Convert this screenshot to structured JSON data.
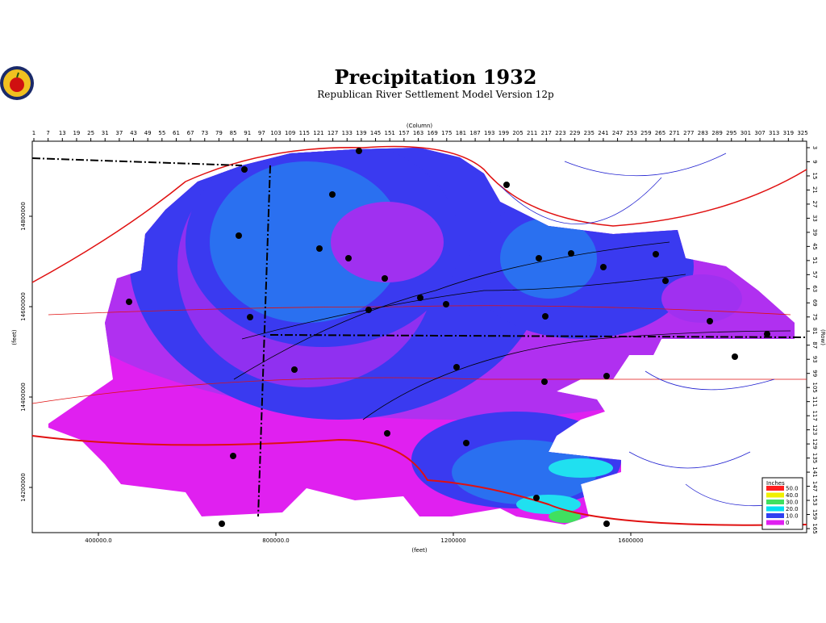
{
  "header": {
    "title": "Precipitation  1932",
    "subtitle": "Republican River Settlement Model Version 12p"
  },
  "top_axis": {
    "label": "(Column)",
    "ticks": [
      "1",
      "7",
      "13",
      "19",
      "25",
      "31",
      "37",
      "43",
      "49",
      "55",
      "61",
      "67",
      "73",
      "79",
      "85",
      "91",
      "97",
      "103",
      "109",
      "115",
      "121",
      "127",
      "133",
      "139",
      "145",
      "151",
      "157",
      "163",
      "169",
      "175",
      "181",
      "187",
      "193",
      "199",
      "205",
      "211",
      "217",
      "223",
      "229",
      "235",
      "241",
      "247",
      "253",
      "259",
      "265",
      "271",
      "277",
      "283",
      "289",
      "295",
      "301",
      "307",
      "313",
      "319",
      "325"
    ]
  },
  "right_axis": {
    "label": "(Row)",
    "ticks": [
      "3",
      "9",
      "15",
      "21",
      "27",
      "33",
      "39",
      "45",
      "51",
      "57",
      "63",
      "69",
      "75",
      "81",
      "87",
      "93",
      "99",
      "105",
      "111",
      "117",
      "123",
      "129",
      "135",
      "141",
      "147",
      "153",
      "159",
      "165"
    ]
  },
  "left_axis": {
    "label": "(feet)",
    "ticks": [
      "14800000",
      "14600000",
      "14400000",
      "14200000"
    ]
  },
  "bottom_axis": {
    "label": "(feet)",
    "ticks": [
      "400000.0",
      "800000.0",
      "1200000",
      "1600000"
    ]
  },
  "legend": {
    "title": "Inches",
    "labels": [
      "50.0",
      "40.0",
      "30.0",
      "20.0",
      "10.0",
      "0"
    ],
    "colors": [
      "#ff2020",
      "#f0f000",
      "#40e060",
      "#00e0f0",
      "#3040f0",
      "#e020f0"
    ]
  }
}
